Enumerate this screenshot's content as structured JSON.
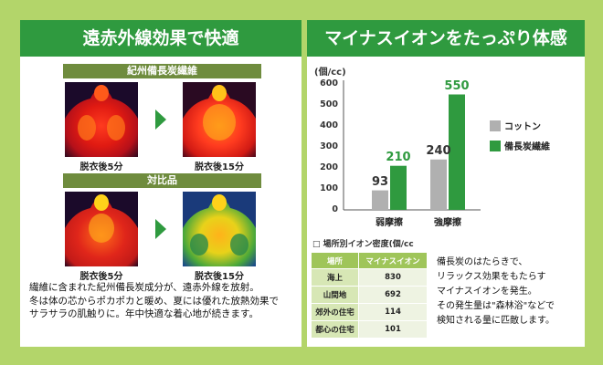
{
  "left_panel": {
    "title": "遠赤外線効果で快適",
    "section1_title": "紀州備長炭繊維",
    "section2_title": "対比品",
    "captions": [
      "脱衣後5分",
      "脱衣後15分",
      "脱衣後5分",
      "脱衣後15分"
    ],
    "description": [
      "繊維に含まれた紀州備長炭成分が、遠赤外線を放射。",
      "冬は体の芯からポカポカと暖め、夏には優れた放熱効果で",
      "サラサラの肌触りに。年中快適な着心地が続きます。"
    ]
  },
  "right_panel": {
    "title": "マイナスイオンをたっぷり体感",
    "table_title": "□ 場所別イオン密度(個/cc",
    "table_headers": [
      "場所",
      "マイナスイオン"
    ],
    "table_rows": [
      {
        "place": "海上",
        "value": "830"
      },
      {
        "place": "山間地",
        "value": "692"
      },
      {
        "place": "郊外の住宅",
        "value": "114"
      },
      {
        "place": "都心の住宅",
        "value": "101"
      }
    ],
    "description": [
      "備長炭のはたらきで、",
      "リラックス効果をもたらす",
      "マイナスイオンを発生。",
      "その発生量は\"森林浴\"などで",
      "検知される量に匹敵します。"
    ]
  },
  "chart_data": {
    "type": "bar",
    "title": "",
    "ylabel": "(個/cc)",
    "xlabel": "",
    "ylim": [
      0,
      600
    ],
    "yticks": [
      "600",
      "500",
      "400",
      "300",
      "200",
      "100",
      "0"
    ],
    "categories": [
      "弱摩擦",
      "強摩擦"
    ],
    "legend_position": "right",
    "series": [
      {
        "name": "コットン",
        "values": [
          93,
          240
        ],
        "labels": [
          "93",
          "240"
        ],
        "color": "#b0b0b0"
      },
      {
        "name": "備長炭繊維",
        "values": [
          210,
          550
        ],
        "labels": [
          "210",
          "550"
        ],
        "color": "#2f9a3f"
      }
    ]
  },
  "colors": {
    "background": "#b3d56a",
    "header": "#2f9a3f",
    "subhead": "#6f8c3e",
    "cotton": "#b0b0b0",
    "charcoal": "#2f9a3f"
  }
}
